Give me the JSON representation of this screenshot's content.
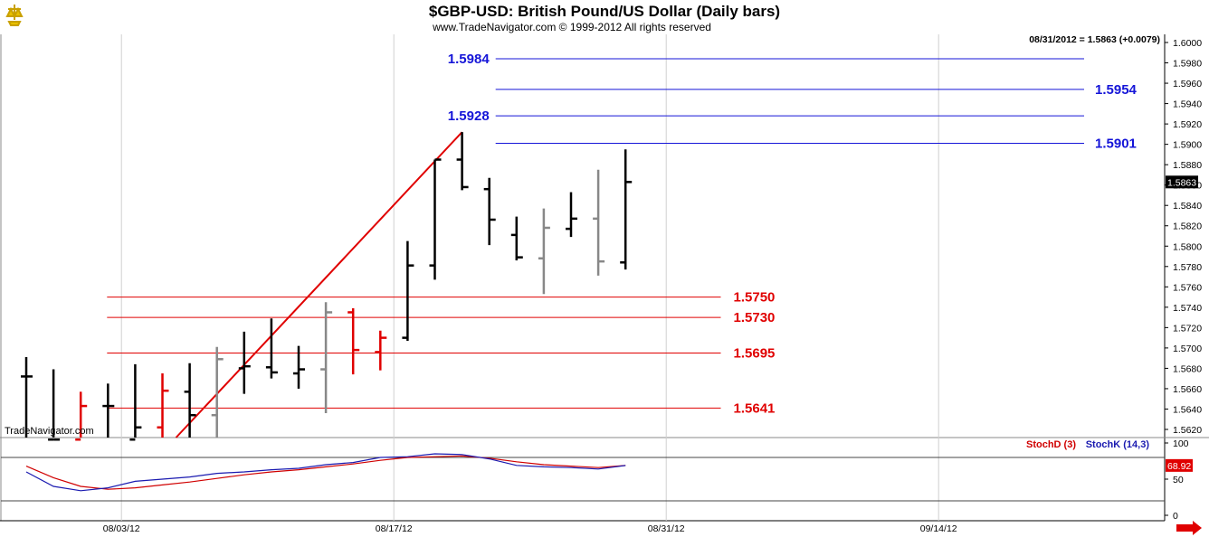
{
  "header": {
    "title": "$GBP-USD:  British Pound/US Dollar  (Daily bars)",
    "copyright": "www.TradeNavigator.com © 1999-2012 All rights reserved",
    "last_info": "08/31/2012 = 1.5863 (+0.0079)",
    "watermark": "TradeNavigator.com"
  },
  "colors": {
    "up_bar": "#000000",
    "neutral_bar": "#888888",
    "down_bar": "#e00000",
    "blue_level": "#1515d8",
    "red_level": "#e00000",
    "trend_line": "#e00000",
    "stoch_d": "#d00000",
    "stoch_k": "#1a1ab0",
    "last_price_badge": "#000000",
    "stoch_badge": "#e00000"
  },
  "chart_data": [
    {
      "type": "ohlc",
      "series_name": "$GBP-USD",
      "ylim": [
        1.5612,
        1.6008
      ],
      "y_ticks": [
        "1.5620",
        "1.5640",
        "1.5660",
        "1.5680",
        "1.5700",
        "1.5720",
        "1.5740",
        "1.5760",
        "1.5780",
        "1.5800",
        "1.5820",
        "1.5840",
        "1.5860",
        "1.5880",
        "1.5900",
        "1.5920",
        "1.5940",
        "1.5960",
        "1.5980",
        "1.6000"
      ],
      "x_ticks": [
        {
          "label": "08/03/12",
          "bar": 2
        },
        {
          "label": "08/17/12",
          "bar": 12
        },
        {
          "label": "08/31/12",
          "bar": 22
        },
        {
          "label": "09/14/12",
          "bar": 32
        }
      ],
      "bars": [
        {
          "h": 1.5691,
          "l": 1.561,
          "o": 1.5672,
          "c": 1.5672,
          "color": "up"
        },
        {
          "h": 1.5679,
          "l": 1.561,
          "o": 1.561,
          "c": 1.561,
          "color": "up"
        },
        {
          "h": 1.5657,
          "l": 1.561,
          "o": 1.561,
          "c": 1.5643,
          "color": "down"
        },
        {
          "h": 1.5665,
          "l": 1.561,
          "o": 1.5643,
          "c": 1.5643,
          "color": "up"
        },
        {
          "h": 1.5684,
          "l": 1.561,
          "o": 1.561,
          "c": 1.5622,
          "color": "up"
        },
        {
          "h": 1.5675,
          "l": 1.561,
          "o": 1.5622,
          "c": 1.5658,
          "color": "down"
        },
        {
          "h": 1.5685,
          "l": 1.561,
          "o": 1.5657,
          "c": 1.5634,
          "color": "up"
        },
        {
          "h": 1.5701,
          "l": 1.561,
          "o": 1.5634,
          "c": 1.5689,
          "color": "neutral"
        },
        {
          "h": 1.5716,
          "l": 1.5655,
          "o": 1.568,
          "c": 1.5682,
          "color": "up"
        },
        {
          "h": 1.5729,
          "l": 1.567,
          "o": 1.5681,
          "c": 1.5676,
          "color": "up"
        },
        {
          "h": 1.5702,
          "l": 1.566,
          "o": 1.5675,
          "c": 1.5679,
          "color": "up"
        },
        {
          "h": 1.5745,
          "l": 1.5636,
          "o": 1.5679,
          "c": 1.5735,
          "color": "neutral"
        },
        {
          "h": 1.5739,
          "l": 1.5674,
          "o": 1.5735,
          "c": 1.5698,
          "color": "down"
        },
        {
          "h": 1.5717,
          "l": 1.5678,
          "o": 1.5696,
          "c": 1.571,
          "color": "down"
        },
        {
          "h": 1.5805,
          "l": 1.5707,
          "o": 1.571,
          "c": 1.5781,
          "color": "up"
        },
        {
          "h": 1.5885,
          "l": 1.5767,
          "o": 1.5781,
          "c": 1.5885,
          "color": "up"
        },
        {
          "h": 1.5912,
          "l": 1.5855,
          "o": 1.5885,
          "c": 1.5858,
          "color": "up"
        },
        {
          "h": 1.5867,
          "l": 1.5801,
          "o": 1.5856,
          "c": 1.5826,
          "color": "up"
        },
        {
          "h": 1.5829,
          "l": 1.5786,
          "o": 1.5811,
          "c": 1.5789,
          "color": "up"
        },
        {
          "h": 1.5837,
          "l": 1.5753,
          "o": 1.5788,
          "c": 1.5818,
          "color": "neutral"
        },
        {
          "h": 1.5853,
          "l": 1.5809,
          "o": 1.5817,
          "c": 1.5827,
          "color": "up"
        },
        {
          "h": 1.5875,
          "l": 1.5771,
          "o": 1.5827,
          "c": 1.5785,
          "color": "neutral"
        },
        {
          "h": 1.5895,
          "l": 1.5777,
          "o": 1.5784,
          "c": 1.5863,
          "color": "up"
        }
      ],
      "levels": [
        {
          "label": "1.5984",
          "value": 1.5984,
          "color": "blue",
          "from_bar": 17,
          "label_side": "left"
        },
        {
          "label": "1.5954",
          "value": 1.5954,
          "color": "blue",
          "from_bar": 17,
          "label_side": "right"
        },
        {
          "label": "1.5928",
          "value": 1.5928,
          "color": "blue",
          "from_bar": 17,
          "label_side": "left"
        },
        {
          "label": "1.5901",
          "value": 1.5901,
          "color": "blue",
          "from_bar": 17,
          "label_side": "right"
        },
        {
          "label": "1.5750",
          "value": 1.575,
          "color": "red",
          "from_bar": 3,
          "label_side": "right"
        },
        {
          "label": "1.5730",
          "value": 1.573,
          "color": "red",
          "from_bar": 3,
          "label_side": "right"
        },
        {
          "label": "1.5695",
          "value": 1.5695,
          "color": "red",
          "from_bar": 3,
          "label_side": "right"
        },
        {
          "label": "1.5641",
          "value": 1.5641,
          "color": "red",
          "from_bar": 3,
          "label_side": "right"
        }
      ],
      "trend_line": [
        {
          "bar": 5.5,
          "value": 1.5612
        },
        {
          "bar": 16,
          "value": 1.5912
        }
      ],
      "last_price": "1.5863",
      "last_price_value": 1.5863
    },
    {
      "type": "line",
      "series_name": "Stochastic",
      "ylim": [
        0,
        100
      ],
      "y_ticks": [
        "0",
        "50",
        "100"
      ],
      "reference_lines": [
        20,
        80
      ],
      "series": [
        {
          "name": "StochD (3)",
          "color": "stoch_d",
          "x": [
            0,
            1,
            2,
            3,
            4,
            5,
            6,
            7,
            8,
            9,
            10,
            11,
            12,
            13,
            14,
            15,
            16,
            17,
            18,
            19,
            20,
            21,
            22
          ],
          "values": [
            68,
            52,
            40,
            36,
            38,
            42,
            46,
            51,
            56,
            60,
            63,
            67,
            71,
            76,
            80,
            81,
            82,
            79,
            74,
            70,
            68,
            66,
            68.92
          ]
        },
        {
          "name": "StochK (14,3)",
          "color": "stoch_k",
          "x": [
            0,
            1,
            2,
            3,
            4,
            5,
            6,
            7,
            8,
            9,
            10,
            11,
            12,
            13,
            14,
            15,
            16,
            17,
            18,
            19,
            20,
            21,
            22
          ],
          "values": [
            60,
            40,
            34,
            38,
            47,
            50,
            53,
            58,
            60,
            63,
            65,
            70,
            73,
            80,
            81,
            85,
            84,
            78,
            69,
            67,
            66,
            64,
            68.92
          ]
        }
      ],
      "last_value": "68.92",
      "last_value_num": 68.92
    }
  ]
}
